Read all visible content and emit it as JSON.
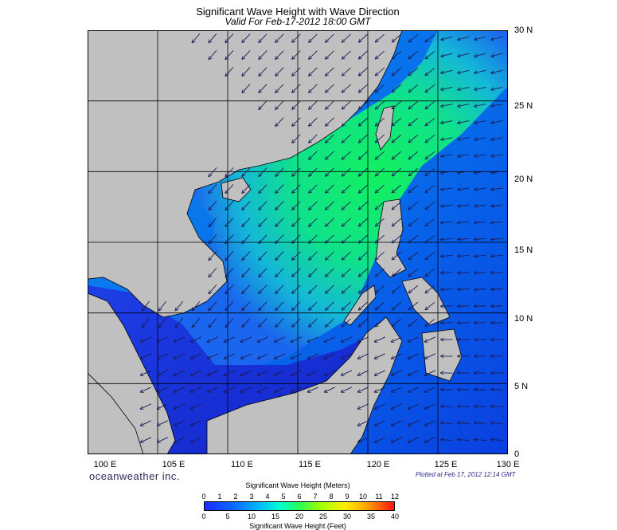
{
  "header": {
    "title": "Significant Wave Height with Wave Direction",
    "subtitle": "Valid For Feb-17-2012 18:00 GMT"
  },
  "map": {
    "region": "South China Sea",
    "lat_labels": [
      "30 N",
      "25 N",
      "20 N",
      "15 N",
      "10 N",
      "5 N",
      "0"
    ],
    "lon_labels": [
      "100 E",
      "105 E",
      "110 E",
      "115 E",
      "120 E",
      "125 E",
      "130 E"
    ],
    "lat_range": [
      0,
      30
    ],
    "lon_range": [
      100,
      130
    ],
    "grid_step_deg": 5,
    "land_color": "#c0c0c0",
    "coast_color": "#000000",
    "arrow_color": "#1c1c55",
    "dominant_wave_direction": "from northeast"
  },
  "footer": {
    "brand": "oceanweather inc.",
    "plotted": "Plotted at Feb 17, 2012 12:14 GMT"
  },
  "legend": {
    "title_meters": "Significant Wave Height (Meters)",
    "title_feet": "Significant Wave Height (Feet)",
    "meters_ticks": [
      "0",
      "1",
      "2",
      "3",
      "4",
      "5",
      "6",
      "7",
      "8",
      "9",
      "10",
      "11",
      "12"
    ],
    "feet_ticks": [
      "0",
      "5",
      "10",
      "15",
      "20",
      "25",
      "30",
      "35",
      "40"
    ],
    "colors": [
      "#1a2bff",
      "#0a6cff",
      "#00b4ff",
      "#00ffd0",
      "#28ff55",
      "#a6ff00",
      "#fff000",
      "#ffa000",
      "#ff1010"
    ]
  }
}
